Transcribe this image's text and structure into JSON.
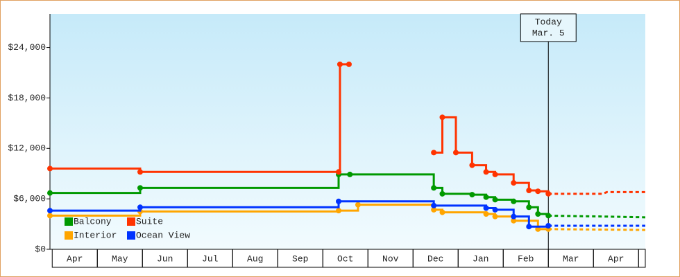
{
  "chart_data": {
    "type": "step-line",
    "categories": [
      "Apr",
      "May",
      "Jun",
      "Jul",
      "Aug",
      "Sep",
      "Oct",
      "Nov",
      "Dec",
      "Jan",
      "Feb",
      "Mar",
      "Apr"
    ],
    "xlim": [
      -0.05,
      13.15
    ],
    "ylim": [
      0,
      28000
    ],
    "yticks": [
      {
        "value": 0,
        "label": "$0"
      },
      {
        "value": 6000,
        "label": "$6,000"
      },
      {
        "value": 12000,
        "label": "$12,000"
      },
      {
        "value": 18000,
        "label": "$18,000"
      },
      {
        "value": 24000,
        "label": "$24,000"
      }
    ],
    "annotation": {
      "x": 11.0,
      "lines": [
        "Today",
        "Mar. 5"
      ]
    },
    "series": [
      {
        "name": "Balcony",
        "color": "#009900",
        "x": [
          -0.05,
          1.95,
          6.35,
          6.6,
          8.46,
          8.65,
          9.31,
          9.62,
          9.82,
          10.23,
          10.57,
          10.77,
          11.0
        ],
        "values": [
          6700,
          7300,
          8900,
          8900,
          7300,
          6600,
          6500,
          6200,
          5900,
          5700,
          5000,
          4200,
          4000
        ],
        "forecast_x": [
          11.0,
          12.2,
          13.15
        ],
        "forecast_values": [
          4000,
          3900,
          3800
        ]
      },
      {
        "name": "Suite",
        "color": "#ff3300",
        "x": [
          -0.05,
          1.95,
          6.35,
          6.38,
          6.58,
          7.0,
          8.46,
          8.65,
          8.95,
          9.31,
          9.62,
          9.82,
          10.23,
          10.57,
          10.77,
          11.0
        ],
        "values": [
          9600,
          9200,
          9200,
          22000,
          22000,
          null,
          11500,
          15700,
          11500,
          10000,
          9200,
          8900,
          7900,
          7000,
          6900,
          6600
        ],
        "forecast_x": [
          11.0,
          12.2,
          12.3,
          13.15
        ],
        "forecast_values": [
          6600,
          6600,
          6800,
          6800
        ]
      },
      {
        "name": "Interior",
        "color": "#ffa500",
        "x": [
          -0.05,
          1.95,
          6.35,
          6.78,
          8.46,
          8.65,
          9.62,
          9.82,
          10.23,
          10.77,
          11.0
        ],
        "values": [
          4000,
          4500,
          4600,
          5300,
          4700,
          4400,
          4200,
          3900,
          3400,
          2400,
          2400
        ],
        "forecast_x": [
          11.0,
          13.15
        ],
        "forecast_values": [
          2400,
          2300
        ]
      },
      {
        "name": "Ocean View",
        "color": "#0033ff",
        "x": [
          -0.05,
          1.95,
          6.35,
          8.46,
          9.62,
          9.82,
          10.23,
          10.57,
          11.0
        ],
        "values": [
          4600,
          5000,
          5700,
          5200,
          4900,
          4700,
          3900,
          2700,
          2800
        ],
        "forecast_x": [
          11.0,
          13.15
        ],
        "forecast_values": [
          2800,
          2800
        ]
      }
    ]
  }
}
